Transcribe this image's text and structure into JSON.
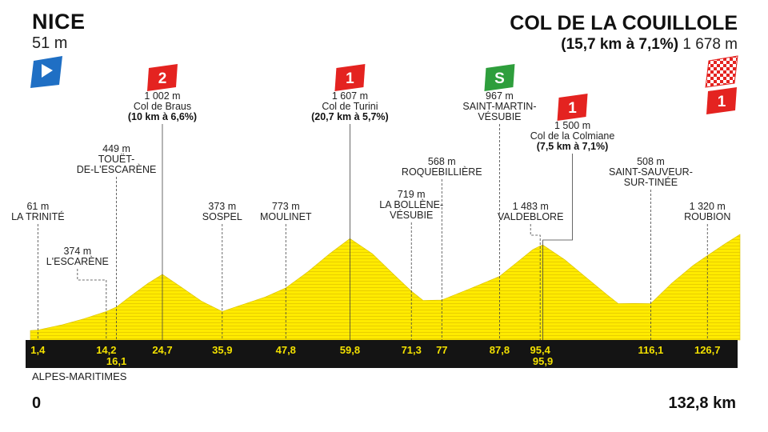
{
  "start": {
    "name": "NICE",
    "altitude": "51 m"
  },
  "finish": {
    "name": "COL DE LA COUILLOLE",
    "climb": "(15,7 km à 7,1%)",
    "altitude": "1 678 m"
  },
  "region": "ALPES-MARITIMES",
  "distance": {
    "start_label": "0",
    "end_label": "132,8 km"
  },
  "colors": {
    "profile": "#ffeb00",
    "strip": "#141414",
    "climb_red": "#e42320",
    "sprint_green": "#2e9e3c",
    "start_blue": "#1f6fc4"
  },
  "chart_data": {
    "type": "area",
    "x_unit": "km",
    "y_unit": "m",
    "xlim": [
      0,
      132.8
    ],
    "profile": [
      [
        0,
        51
      ],
      [
        1.4,
        61
      ],
      [
        6,
        150
      ],
      [
        10,
        250
      ],
      [
        14.2,
        374
      ],
      [
        16.1,
        449
      ],
      [
        19,
        650
      ],
      [
        22,
        850
      ],
      [
        24.7,
        1002
      ],
      [
        28,
        800
      ],
      [
        32,
        550
      ],
      [
        35.9,
        373
      ],
      [
        40,
        500
      ],
      [
        44,
        620
      ],
      [
        47.8,
        773
      ],
      [
        52,
        1050
      ],
      [
        56,
        1350
      ],
      [
        59.8,
        1607
      ],
      [
        64,
        1350
      ],
      [
        68,
        1000
      ],
      [
        71.3,
        719
      ],
      [
        73.5,
        560
      ],
      [
        77,
        568
      ],
      [
        82,
        750
      ],
      [
        87.8,
        967
      ],
      [
        91,
        1200
      ],
      [
        94,
        1420
      ],
      [
        95.4,
        1483
      ],
      [
        95.9,
        1500
      ],
      [
        100,
        1250
      ],
      [
        104,
        950
      ],
      [
        108,
        650
      ],
      [
        110,
        508
      ],
      [
        113,
        510
      ],
      [
        116.1,
        508
      ],
      [
        120,
        850
      ],
      [
        124,
        1150
      ],
      [
        126.7,
        1320
      ],
      [
        130,
        1520
      ],
      [
        132.8,
        1678
      ]
    ],
    "km_marks": [
      {
        "km": 1.4,
        "label": "1,4",
        "row": 0
      },
      {
        "km": 14.2,
        "label": "14,2",
        "row": 0
      },
      {
        "km": 16.1,
        "label": "16,1",
        "row": 1
      },
      {
        "km": 24.7,
        "label": "24,7",
        "row": 0
      },
      {
        "km": 35.9,
        "label": "35,9",
        "row": 0
      },
      {
        "km": 47.8,
        "label": "47,8",
        "row": 0
      },
      {
        "km": 59.8,
        "label": "59,8",
        "row": 0
      },
      {
        "km": 71.3,
        "label": "71,3",
        "row": 0
      },
      {
        "km": 77,
        "label": "77",
        "row": 0
      },
      {
        "km": 87.8,
        "label": "87,8",
        "row": 0
      },
      {
        "km": 95.4,
        "label": "95,4",
        "row": 0
      },
      {
        "km": 95.9,
        "label": "95,9",
        "row": 1
      },
      {
        "km": 116.1,
        "label": "116,1",
        "row": 0
      },
      {
        "km": 126.7,
        "label": "126,7",
        "row": 0
      }
    ],
    "waypoints": [
      {
        "km": 1.4,
        "altitude": "61 m",
        "lines": [
          "LA TRINITÉ"
        ]
      },
      {
        "km": 14.2,
        "altitude": "374 m",
        "lines": [
          "L'ESCARÈNE"
        ]
      },
      {
        "km": 16.1,
        "altitude": "449 m",
        "lines": [
          "TOUËT-",
          "DE-L'ESCARÈNE"
        ]
      },
      {
        "km": 24.7,
        "altitude": "1 002 m",
        "lines": [
          "Col de Braus"
        ],
        "climb": "(10 km à 6,6%)",
        "category": "2"
      },
      {
        "km": 35.9,
        "altitude": "373 m",
        "lines": [
          "SOSPEL"
        ]
      },
      {
        "km": 47.8,
        "altitude": "773 m",
        "lines": [
          "MOULINET"
        ]
      },
      {
        "km": 59.8,
        "altitude": "1 607 m",
        "lines": [
          "Col de Turini"
        ],
        "climb": "(20,7 km à 5,7%)",
        "category": "1"
      },
      {
        "km": 71.3,
        "altitude": "719 m",
        "lines": [
          "LA BOLLÈNE-",
          "VÉSUBIE"
        ]
      },
      {
        "km": 77,
        "altitude": "568 m",
        "lines": [
          "ROQUEBILLIÈRE"
        ]
      },
      {
        "km": 87.8,
        "altitude": "967 m",
        "lines": [
          "SAINT-MARTIN-",
          "VÉSUBIE"
        ],
        "sprint": "S"
      },
      {
        "km": 95.4,
        "altitude": "1 483 m",
        "lines": [
          "VALDEBLORE"
        ]
      },
      {
        "km": 95.9,
        "altitude": "1 500 m",
        "lines": [
          "Col de la Colmiane"
        ],
        "climb": "(7,5 km à 7,1%)",
        "category": "1"
      },
      {
        "km": 116.1,
        "altitude": "508 m",
        "lines": [
          "SAINT-SAUVEUR-",
          "SUR-TINÉE"
        ]
      },
      {
        "km": 126.7,
        "altitude": "1 320 m",
        "lines": [
          "ROUBION"
        ]
      }
    ],
    "finish_category": "1"
  }
}
